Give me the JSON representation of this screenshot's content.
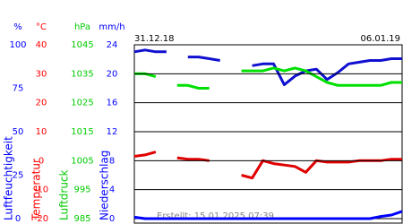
{
  "chart_data": {
    "type": "line",
    "start_date": "31.12.18",
    "end_date": "06.01.19",
    "footer": "Erstellt: 15.01.2025 07:39",
    "categories": [
      null,
      null,
      null,
      null,
      null,
      null,
      null,
      null,
      null,
      null,
      null,
      null,
      null,
      null,
      null,
      null,
      null,
      null,
      null,
      null,
      null,
      null,
      null,
      null,
      null,
      null
    ],
    "series": [
      {
        "name": "Luftfeuchtigkeit",
        "unit": "%",
        "color": "#0000ff",
        "line_color": "#1010d0",
        "ylim": [
          0,
          100
        ],
        "yticks": [
          100,
          75,
          50,
          25,
          0
        ],
        "values": [
          96,
          97,
          96,
          96,
          null,
          93,
          93,
          92,
          91,
          null,
          null,
          88,
          89,
          89,
          77,
          82,
          85,
          86,
          80,
          84,
          89,
          90,
          91,
          91,
          92,
          92
        ]
      },
      {
        "name": "Temperatur",
        "unit": "°C",
        "color": "#ff0000",
        "line_color": "#e00000",
        "ylim": [
          -20,
          40
        ],
        "yticks": [
          40,
          30,
          20,
          10,
          0,
          -10,
          -20
        ],
        "values": [
          1.5,
          2,
          3,
          null,
          1,
          0.5,
          0.5,
          0,
          null,
          null,
          -5,
          -6,
          0,
          -1,
          -1.5,
          -2,
          -4,
          0,
          -0.5,
          -0.5,
          -0.5,
          0,
          0,
          0,
          0.5,
          0.5
        ]
      },
      {
        "name": "Luftdruck",
        "unit": "hPa",
        "color": "#00cc00",
        "line_color": "#00e000",
        "ylim": [
          985,
          1045
        ],
        "yticks": [
          1045,
          1035,
          1025,
          1015,
          1005,
          995,
          985
        ],
        "values": [
          1035,
          1035,
          1034,
          null,
          1031,
          1031,
          1030,
          1030,
          null,
          null,
          1036,
          1036,
          1036,
          1037,
          1036,
          1037,
          1036,
          1034,
          1032,
          1031,
          1031,
          1031,
          1031,
          1031,
          1032,
          1032
        ]
      },
      {
        "name": "Niederschlag",
        "unit": "mm/h",
        "color": "#0000ff",
        "line_color": "#0000ff",
        "ylim": [
          0,
          24
        ],
        "yticks": [
          24,
          20,
          16,
          12,
          8,
          4,
          0
        ],
        "values": [
          0.2,
          0,
          0,
          0,
          0,
          0,
          0,
          0,
          0,
          0,
          0,
          0,
          0,
          0,
          0,
          0,
          0,
          0,
          0,
          0,
          0,
          0,
          0,
          0.3,
          0.5,
          1
        ]
      }
    ],
    "grid": true
  }
}
